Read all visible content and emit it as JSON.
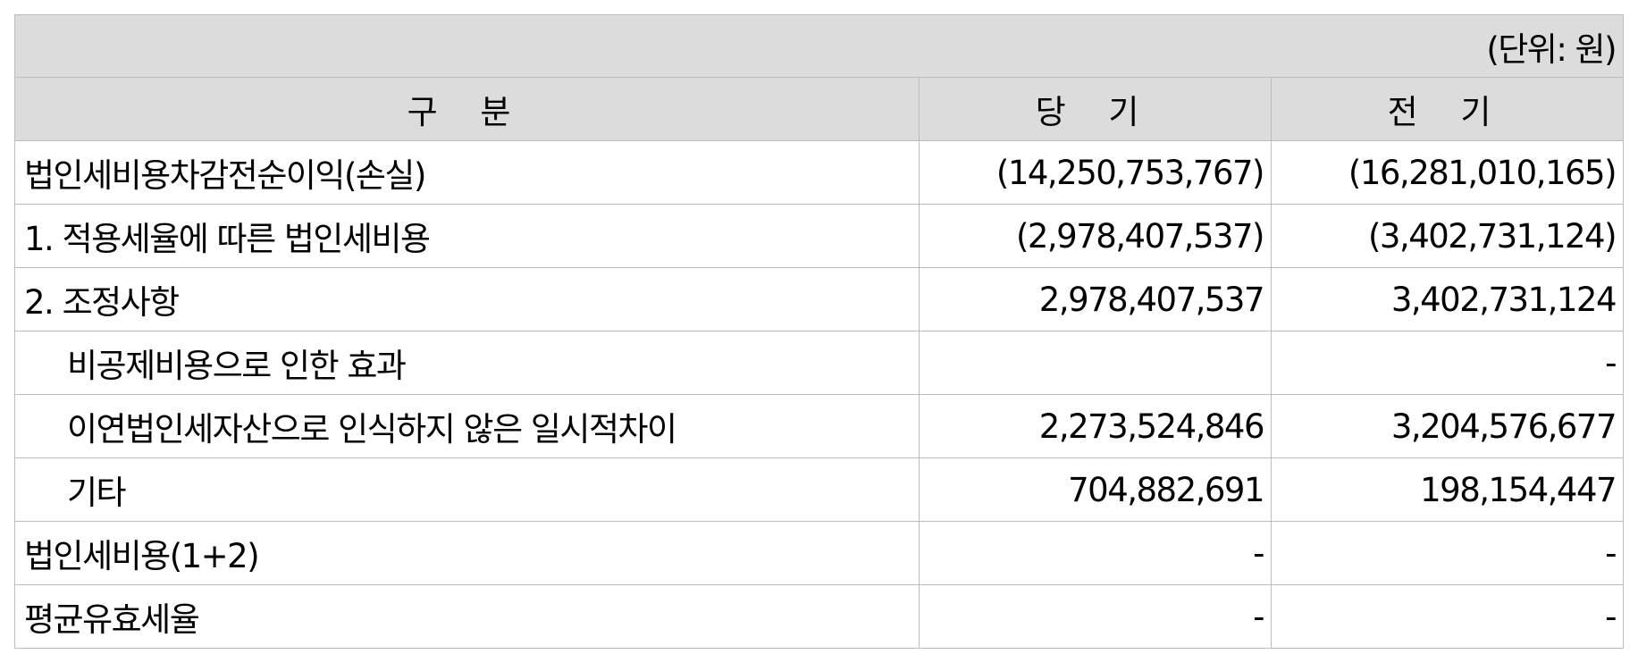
{
  "unit_label": "(단위: 원)",
  "headers": {
    "category": "구 분",
    "current": "당 기",
    "prior": "전 기"
  },
  "rows": [
    {
      "label": "법인세비용차감전순이익(손실)",
      "current": "(14,250,753,767)",
      "prior": "(16,281,010,165)",
      "indent": false
    },
    {
      "label": "1. 적용세율에 따른 법인세비용",
      "current": "(2,978,407,537)",
      "prior": "(3,402,731,124)",
      "indent": false
    },
    {
      "label": "2. 조정사항",
      "current": "2,978,407,537",
      "prior": "3,402,731,124",
      "indent": false
    },
    {
      "label": "비공제비용으로 인한 효과",
      "current": "",
      "prior": "-",
      "indent": true
    },
    {
      "label": "이연법인세자산으로 인식하지 않은 일시적차이",
      "current": "2,273,524,846",
      "prior": "3,204,576,677",
      "indent": true
    },
    {
      "label": "기타",
      "current": "704,882,691",
      "prior": "198,154,447",
      "indent": true
    },
    {
      "label": "법인세비용(1+2)",
      "current": "-",
      "prior": "-",
      "indent": false
    },
    {
      "label": "평균유효세율",
      "current": "-",
      "prior": "-",
      "indent": false
    }
  ]
}
